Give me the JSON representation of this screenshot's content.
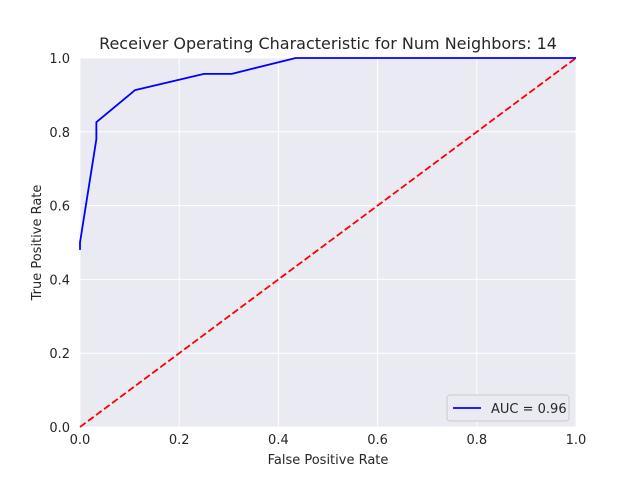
{
  "chart_data": {
    "type": "line",
    "title": "Receiver Operating Characteristic for Num Neighbors: 14",
    "xlabel": "False Positive Rate",
    "ylabel": "True Positive Rate",
    "xlim": [
      0,
      1
    ],
    "ylim": [
      0,
      1
    ],
    "grid": true,
    "legend_position": "lower-right",
    "x_ticks": [
      "0.0",
      "0.2",
      "0.4",
      "0.6",
      "0.8",
      "1.0"
    ],
    "y_ticks": [
      "0.0",
      "0.2",
      "0.4",
      "0.6",
      "0.8",
      "1.0"
    ],
    "series": [
      {
        "name": "AUC = 0.96",
        "color": "#0000ff",
        "style": "solid",
        "x": [
          0.0,
          0.0,
          0.033,
          0.033,
          0.111,
          0.25,
          0.306,
          0.435,
          0.5,
          1.0
        ],
        "y": [
          0.48,
          0.5,
          0.78,
          0.826,
          0.913,
          0.957,
          0.957,
          1.0,
          1.0,
          1.0
        ]
      },
      {
        "color": "#ff0000",
        "style": "dashed",
        "x": [
          0,
          1
        ],
        "y": [
          0,
          1
        ]
      }
    ]
  }
}
